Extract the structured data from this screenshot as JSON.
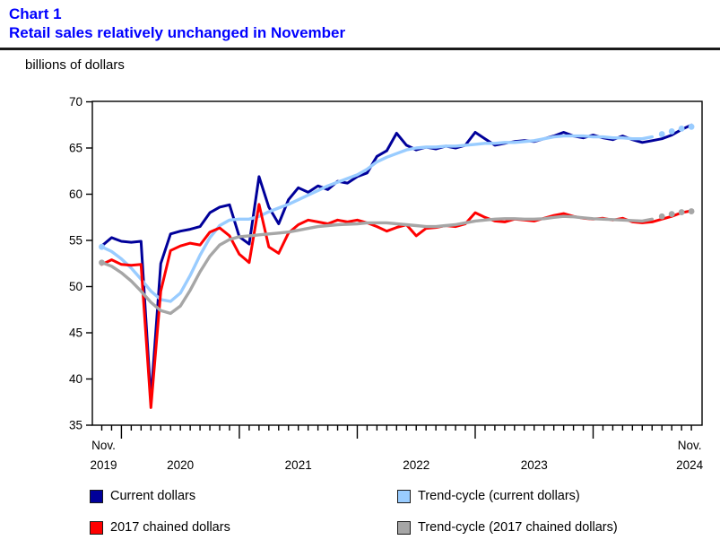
{
  "page": {
    "chart_label": "Chart 1",
    "chart_title": "Retail sales relatively unchanged in November",
    "unit_label": "billions of dollars"
  },
  "colors": {
    "title_text": "#0000FF",
    "current_dollars": "#00009A",
    "trend_current": "#99CCFF",
    "chained_dollars": "#FF0000",
    "trend_chained": "#A6A6A6",
    "axis": "#000000"
  },
  "legend": [
    {
      "label": "Current dollars",
      "color": "#00009A"
    },
    {
      "label": "Trend-cycle (current dollars)",
      "color": "#99CCFF"
    },
    {
      "label": "2017 chained dollars",
      "color": "#FF0000"
    },
    {
      "label": "Trend-cycle (2017 chained dollars)",
      "color": "#A6A6A6"
    }
  ],
  "chart_data": {
    "type": "line",
    "title": "Retail sales relatively unchanged in November",
    "ylabel": "billions of dollars",
    "ylim": [
      35,
      70
    ],
    "yticks": [
      35,
      40,
      45,
      50,
      55,
      60,
      65,
      70
    ],
    "grid": false,
    "legend_position": "bottom",
    "x_axis": {
      "start_label_line1": "Nov.",
      "start_label_line2": "2019",
      "end_label_line1": "Nov.",
      "end_label_line2": "2024",
      "year_labels": [
        "2020",
        "2021",
        "2022",
        "2023"
      ],
      "months_total": 61,
      "minor_ticks": "monthly",
      "major_ticks": "january"
    },
    "series": [
      {
        "name": "Current dollars",
        "color": "#00009A",
        "line_style": "solid",
        "values": [
          54.4,
          55.3,
          54.9,
          54.8,
          54.9,
          37.8,
          52.5,
          55.7,
          56.0,
          56.2,
          56.5,
          58.0,
          58.6,
          58.85,
          55.4,
          54.6,
          61.9,
          58.6,
          56.8,
          59.4,
          60.7,
          60.2,
          60.9,
          60.5,
          61.4,
          61.2,
          61.9,
          62.3,
          64.1,
          64.7,
          66.6,
          65.3,
          64.8,
          65.1,
          64.9,
          65.2,
          65.0,
          65.3,
          66.7,
          66.0,
          65.3,
          65.5,
          65.7,
          65.8,
          65.7,
          66.0,
          66.3,
          66.7,
          66.3,
          66.1,
          66.4,
          66.1,
          65.9,
          66.3,
          65.9,
          65.6,
          65.8,
          66.0,
          66.4,
          67.0,
          67.5
        ]
      },
      {
        "name": "Trend-cycle (current dollars)",
        "color": "#99CCFF",
        "line_style": "solid_with_dotted_ends",
        "dotted_start_points": 1,
        "dotted_end_points": 4,
        "values": [
          54.3,
          53.8,
          53.0,
          52.0,
          50.8,
          49.5,
          48.6,
          48.4,
          49.3,
          51.2,
          53.4,
          55.3,
          56.6,
          57.2,
          57.3,
          57.3,
          57.6,
          58.1,
          58.5,
          58.9,
          59.4,
          59.9,
          60.4,
          60.9,
          61.3,
          61.7,
          62.1,
          62.7,
          63.5,
          64.0,
          64.4,
          64.8,
          65.0,
          65.1,
          65.1,
          65.2,
          65.2,
          65.3,
          65.4,
          65.5,
          65.5,
          65.6,
          65.6,
          65.7,
          65.8,
          66.0,
          66.2,
          66.3,
          66.3,
          66.3,
          66.2,
          66.2,
          66.1,
          66.1,
          66.0,
          66.0,
          66.2,
          66.5,
          66.8,
          67.1,
          67.3
        ]
      },
      {
        "name": "2017 chained dollars",
        "color": "#FF0000",
        "line_style": "solid",
        "values": [
          52.4,
          52.9,
          52.4,
          52.3,
          52.4,
          36.9,
          49.5,
          53.9,
          54.4,
          54.7,
          54.5,
          55.9,
          56.35,
          55.5,
          53.5,
          52.6,
          58.9,
          54.3,
          53.6,
          55.8,
          56.7,
          57.2,
          57.0,
          56.8,
          57.2,
          57.0,
          57.2,
          56.9,
          56.5,
          56.0,
          56.4,
          56.7,
          55.5,
          56.3,
          56.4,
          56.6,
          56.5,
          56.8,
          58.0,
          57.5,
          57.1,
          57.0,
          57.3,
          57.2,
          57.1,
          57.4,
          57.7,
          57.9,
          57.6,
          57.4,
          57.3,
          57.4,
          57.2,
          57.4,
          57.0,
          56.9,
          57.0,
          57.3,
          57.6,
          58.0,
          58.2
        ]
      },
      {
        "name": "Trend-cycle (2017 chained dollars)",
        "color": "#A6A6A6",
        "line_style": "solid_with_dotted_ends",
        "dotted_start_points": 1,
        "dotted_end_points": 4,
        "values": [
          52.6,
          52.2,
          51.5,
          50.6,
          49.5,
          48.3,
          47.4,
          47.1,
          47.9,
          49.6,
          51.6,
          53.3,
          54.5,
          55.1,
          55.4,
          55.5,
          55.6,
          55.7,
          55.8,
          55.9,
          56.1,
          56.3,
          56.5,
          56.6,
          56.7,
          56.75,
          56.8,
          56.9,
          56.9,
          56.9,
          56.8,
          56.7,
          56.6,
          56.5,
          56.5,
          56.6,
          56.7,
          56.9,
          57.1,
          57.2,
          57.3,
          57.35,
          57.35,
          57.3,
          57.3,
          57.35,
          57.5,
          57.6,
          57.55,
          57.45,
          57.35,
          57.3,
          57.25,
          57.2,
          57.15,
          57.1,
          57.3,
          57.6,
          57.85,
          58.05,
          58.15
        ]
      }
    ]
  }
}
